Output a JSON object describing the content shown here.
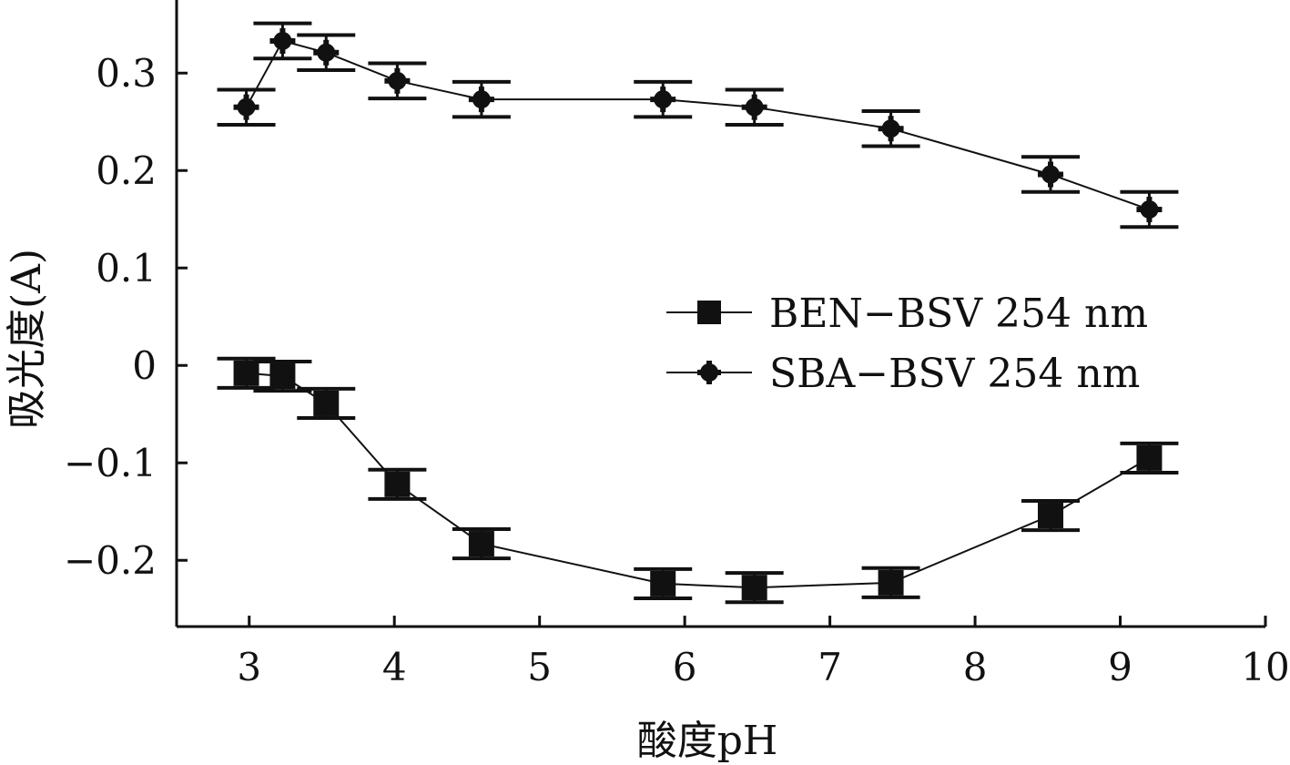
{
  "chart_data": {
    "type": "line",
    "xlabel": "酸度pH",
    "ylabel": "吸光度(A)",
    "xlim": [
      2.5,
      10
    ],
    "ylim": [
      -0.268,
      0.375
    ],
    "x_ticks": [
      "3",
      "4",
      "5",
      "6",
      "7",
      "8",
      "9",
      "10"
    ],
    "y_ticks": [
      "0.3",
      "0.2",
      "0.1",
      "0",
      "−0.1",
      "−0.2"
    ],
    "x_tick_values": [
      3,
      4,
      5,
      6,
      7,
      8,
      9,
      10
    ],
    "y_tick_values": [
      0.3,
      0.2,
      0.1,
      0,
      -0.1,
      -0.2
    ],
    "grid": false,
    "legend_position": "center-right",
    "series": [
      {
        "name": "BEN−BSV 254 nm",
        "marker": "square",
        "color": "#111111",
        "x": [
          2.98,
          3.23,
          3.53,
          4.02,
          4.6,
          5.85,
          6.48,
          7.42,
          8.52,
          9.2
        ],
        "y": [
          -0.008,
          -0.011,
          -0.039,
          -0.122,
          -0.183,
          -0.224,
          -0.228,
          -0.223,
          -0.154,
          -0.095
        ],
        "error": [
          0.015,
          0.015,
          0.015,
          0.015,
          0.015,
          0.015,
          0.015,
          0.015,
          0.015,
          0.015
        ]
      },
      {
        "name": "SBA−BSV 254 nm",
        "marker": "plus-circle",
        "color": "#111111",
        "x": [
          2.98,
          3.23,
          3.53,
          4.02,
          4.6,
          5.85,
          6.48,
          7.42,
          8.52,
          9.2
        ],
        "y": [
          0.265,
          0.333,
          0.321,
          0.292,
          0.273,
          0.273,
          0.265,
          0.243,
          0.196,
          0.16
        ],
        "error": [
          0.018,
          0.018,
          0.018,
          0.018,
          0.018,
          0.018,
          0.018,
          0.018,
          0.018,
          0.018
        ]
      }
    ]
  }
}
